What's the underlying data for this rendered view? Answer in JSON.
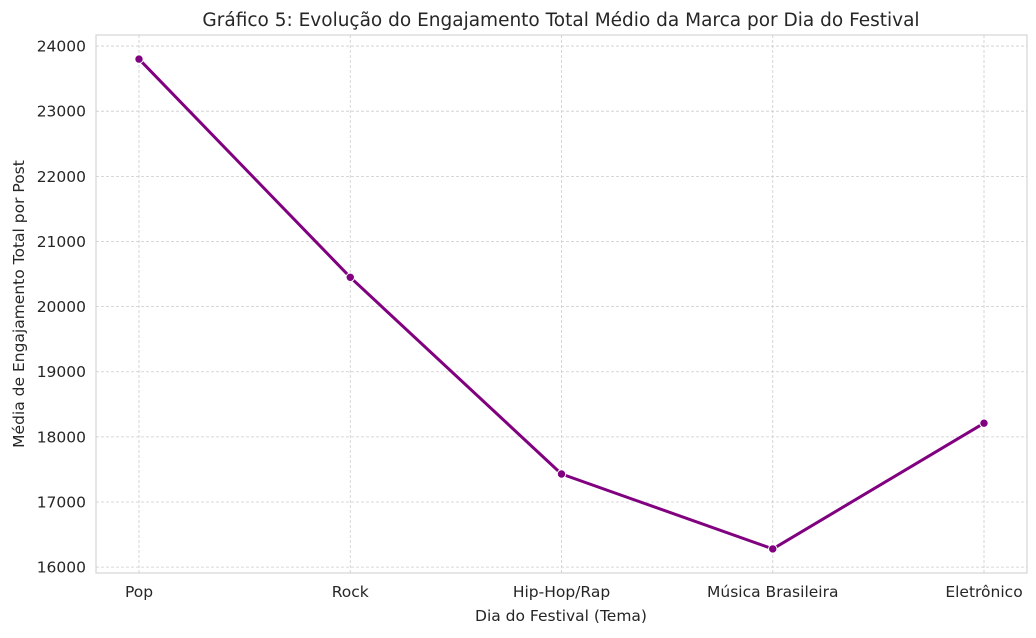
{
  "chart_data": {
    "type": "line",
    "title": "Gráfico 5: Evolução do Engajamento Total Médio da Marca por Dia do Festival",
    "xlabel": "Dia do Festival (Tema)",
    "ylabel": "Média de Engajamento Total por Post",
    "categories": [
      "Pop",
      "Rock",
      "Hip-Hop/Rap",
      "Música Brasileira",
      "Eletrônico"
    ],
    "series": [
      {
        "values": [
          23800,
          20450,
          17430,
          16280,
          18210
        ]
      }
    ],
    "ylim": [
      15910,
      24170
    ],
    "yticks": [
      16000,
      17000,
      18000,
      19000,
      20000,
      21000,
      22000,
      23000,
      24000
    ],
    "grid": true,
    "line_color": "#800080",
    "marker": "circle"
  }
}
